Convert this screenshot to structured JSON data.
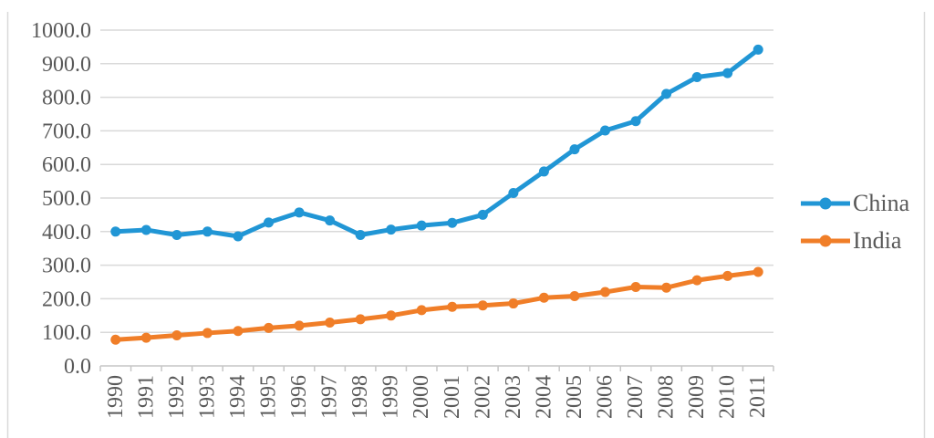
{
  "chart_data": {
    "type": "line",
    "title": "",
    "xlabel": "",
    "ylabel": "",
    "categories": [
      "1990",
      "1991",
      "1992",
      "1993",
      "1994",
      "1995",
      "1996",
      "1997",
      "1998",
      "1999",
      "2000",
      "2001",
      "2002",
      "2003",
      "2004",
      "2005",
      "2006",
      "2007",
      "2008",
      "2009",
      "2010",
      "2011"
    ],
    "series": [
      {
        "name": "China",
        "color": "#2196d5",
        "values": [
          400,
          405,
          390,
          400,
          386,
          427,
          457,
          433,
          390,
          406,
          418,
          426,
          450,
          515,
          579,
          645,
          701,
          729,
          810,
          860,
          872,
          942
        ]
      },
      {
        "name": "India",
        "color": "#f07e28",
        "values": [
          78,
          84,
          91,
          98,
          104,
          113,
          120,
          129,
          139,
          150,
          166,
          176,
          180,
          186,
          203,
          208,
          220,
          235,
          233,
          255,
          268,
          280
        ]
      }
    ],
    "ylim": [
      0,
      1000
    ],
    "ytick_step": 100,
    "y_ticks": [
      "0.0",
      "100.0",
      "200.0",
      "300.0",
      "400.0",
      "500.0",
      "600.0",
      "700.0",
      "800.0",
      "900.0",
      "1000.0"
    ],
    "x_tick_rotation": "90-degrees-counterclockwise",
    "grid": true,
    "legend_position": "right",
    "colors": {
      "text": "#595959",
      "gridline": "#d9d9d9",
      "axis": "#c6c6c6",
      "frame": "#d9d9d9",
      "background": "#ffffff"
    }
  }
}
